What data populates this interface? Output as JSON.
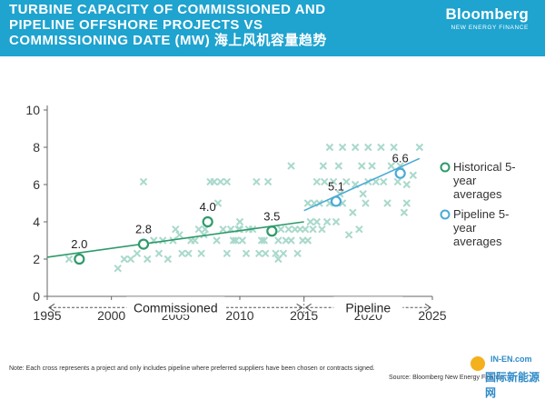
{
  "header": {
    "title_line1": "TURBINE CAPACITY OF COMMISSIONED AND",
    "title_line2": "PIPELINE OFFSHORE PROJECTS VS",
    "title_line3": "COMMISSIONING DATE (MW) 海上风机容量趋势",
    "logo_brand": "Bloomberg",
    "logo_sub": "NEW ENERGY FINANCE"
  },
  "footer": {
    "note": "Note: Each cross represents a project and only includes pipeline where preferred suppliers have been chosen or contracts signed.",
    "source": "Source: Bloomberg New Energy Finance"
  },
  "watermark": {
    "top": "IN-EN.com",
    "bottom": "国际新能源网"
  },
  "colors": {
    "header_bg": "#1fa3cf",
    "commissioned": "#2e9a6a",
    "pipeline": "#4aaad6",
    "cross": "#a9d9cc"
  },
  "chart_data": {
    "type": "scatter",
    "title": "",
    "xlabel": "",
    "ylabel": "",
    "xlim": [
      1995,
      2025
    ],
    "ylim": [
      0,
      10
    ],
    "xticks": [
      1995,
      2000,
      2005,
      2010,
      2015,
      2020,
      2025
    ],
    "yticks": [
      0,
      2,
      4,
      6,
      8,
      10
    ],
    "grid": false,
    "legend_position": "right",
    "legend": [
      {
        "label": "Historical 5-year averages",
        "color": "#2e9a6a"
      },
      {
        "label": "Pipeline 5-year averages",
        "color": "#4aaad6"
      }
    ],
    "series": [
      {
        "name": "Historical 5-year averages",
        "points": [
          {
            "x": 1997.5,
            "y": 2.0,
            "label": "2.0"
          },
          {
            "x": 2002.5,
            "y": 2.8,
            "label": "2.8"
          },
          {
            "x": 2007.5,
            "y": 4.0,
            "label": "4.0"
          },
          {
            "x": 2012.5,
            "y": 3.5,
            "label": "3.5"
          }
        ],
        "trendline": [
          [
            1995,
            2.1
          ],
          [
            2015,
            4.0
          ]
        ]
      },
      {
        "name": "Pipeline 5-year averages",
        "points": [
          {
            "x": 2017.5,
            "y": 5.1,
            "label": "5.1"
          },
          {
            "x": 2022.5,
            "y": 6.6,
            "label": "6.6"
          }
        ],
        "trendline": [
          [
            2015,
            4.6
          ],
          [
            2024,
            7.4
          ]
        ]
      }
    ],
    "crosses_commissioned": [
      [
        1996.7,
        2.0
      ],
      [
        2000.5,
        1.5
      ],
      [
        2001.0,
        2.0
      ],
      [
        2001.5,
        2.0
      ],
      [
        2002.0,
        2.3
      ],
      [
        2002.5,
        6.15
      ],
      [
        2002.8,
        2.0
      ],
      [
        2003.3,
        3.0
      ],
      [
        2003.7,
        2.3
      ],
      [
        2004.0,
        3.0
      ],
      [
        2004.4,
        2.0
      ],
      [
        2004.8,
        3.0
      ],
      [
        2005.0,
        3.6
      ],
      [
        2005.5,
        2.3
      ],
      [
        2006.0,
        2.3
      ],
      [
        2006.5,
        3.0
      ],
      [
        2006.8,
        3.6
      ],
      [
        2007.0,
        2.3
      ],
      [
        2007.3,
        3.6
      ],
      [
        2007.7,
        6.15
      ],
      [
        2008.0,
        6.15
      ],
      [
        2008.2,
        3.0
      ],
      [
        2008.5,
        6.15
      ],
      [
        2008.7,
        3.6
      ],
      [
        2009.0,
        6.15
      ],
      [
        2009.0,
        2.3
      ],
      [
        2009.3,
        3.6
      ],
      [
        2009.7,
        3.0
      ],
      [
        2009.9,
        3.6
      ],
      [
        2010.0,
        3.6
      ],
      [
        2010.2,
        3.0
      ],
      [
        2010.5,
        2.3
      ],
      [
        2010.7,
        3.6
      ],
      [
        2011.0,
        3.6
      ],
      [
        2011.3,
        6.15
      ],
      [
        2011.5,
        2.3
      ],
      [
        2011.7,
        3.0
      ],
      [
        2012.0,
        2.3
      ],
      [
        2012.2,
        6.15
      ],
      [
        2012.5,
        3.6
      ],
      [
        2012.8,
        2.3
      ],
      [
        2013.0,
        3.0
      ],
      [
        2013.2,
        3.6
      ],
      [
        2013.4,
        2.3
      ],
      [
        2013.6,
        3.0
      ],
      [
        2013.8,
        3.6
      ],
      [
        2014.0,
        7.0
      ],
      [
        2014.0,
        3.0
      ],
      [
        2014.3,
        3.6
      ],
      [
        2014.5,
        2.3
      ],
      [
        2014.7,
        3.6
      ],
      [
        2014.9,
        3.0
      ],
      [
        2008.3,
        5.0
      ],
      [
        2010.0,
        4.0
      ],
      [
        2005.3,
        3.3
      ],
      [
        2009.5,
        3.0
      ],
      [
        2011.9,
        3.0
      ],
      [
        2013.0,
        2.0
      ],
      [
        2007.2,
        3.3
      ],
      [
        2006.2,
        3.0
      ]
    ],
    "crosses_pipeline": [
      [
        2015.1,
        3.6
      ],
      [
        2015.3,
        3.0
      ],
      [
        2015.5,
        4.0
      ],
      [
        2015.7,
        3.6
      ],
      [
        2015.8,
        5.0
      ],
      [
        2016.0,
        4.0
      ],
      [
        2016.0,
        6.15
      ],
      [
        2016.2,
        5.0
      ],
      [
        2016.4,
        3.6
      ],
      [
        2016.6,
        6.15
      ],
      [
        2016.8,
        4.0
      ],
      [
        2017.0,
        5.0
      ],
      [
        2017.0,
        8.0
      ],
      [
        2017.3,
        6.15
      ],
      [
        2017.5,
        4.0
      ],
      [
        2017.7,
        7.0
      ],
      [
        2018.0,
        8.0
      ],
      [
        2018.0,
        5.0
      ],
      [
        2018.3,
        6.15
      ],
      [
        2018.5,
        3.3
      ],
      [
        2018.8,
        4.5
      ],
      [
        2019.0,
        8.0
      ],
      [
        2019.0,
        6.0
      ],
      [
        2019.3,
        3.6
      ],
      [
        2019.5,
        7.0
      ],
      [
        2019.8,
        5.0
      ],
      [
        2020.0,
        6.15
      ],
      [
        2020.0,
        8.0
      ],
      [
        2020.3,
        7.0
      ],
      [
        2020.6,
        6.15
      ],
      [
        2021.0,
        8.0
      ],
      [
        2021.2,
        6.15
      ],
      [
        2021.5,
        5.0
      ],
      [
        2021.8,
        7.0
      ],
      [
        2022.0,
        8.0
      ],
      [
        2022.3,
        6.15
      ],
      [
        2022.5,
        7.0
      ],
      [
        2023.0,
        5.0
      ],
      [
        2023.0,
        6.0
      ],
      [
        2023.5,
        6.5
      ],
      [
        2024.0,
        8.0
      ],
      [
        2016.5,
        7.0
      ],
      [
        2015.3,
        5.0
      ],
      [
        2017.8,
        5.5
      ],
      [
        2019.6,
        5.5
      ],
      [
        2022.8,
        4.5
      ]
    ],
    "period_annotations": [
      {
        "label": "Commissioned",
        "x_from": 1995,
        "x_to": 2015
      },
      {
        "label": "Pipeline",
        "x_from": 2015,
        "x_to": 2025
      }
    ]
  }
}
